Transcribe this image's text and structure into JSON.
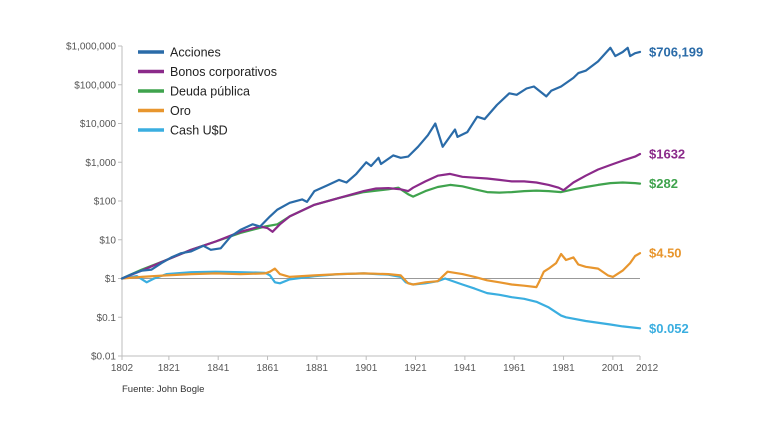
{
  "chart_data": {
    "type": "line",
    "title": "",
    "xlabel": "",
    "ylabel": "",
    "y_scale": "log",
    "ylim": [
      0.01,
      1000000
    ],
    "xlim": [
      1802,
      2012
    ],
    "baseline": 1,
    "grid": false,
    "legend_position": "top-left",
    "y_ticks": [
      {
        "value": 1000000,
        "label": "$1,000,000"
      },
      {
        "value": 100000,
        "label": "$100,000"
      },
      {
        "value": 10000,
        "label": "$10,000"
      },
      {
        "value": 1000,
        "label": "$1,000"
      },
      {
        "value": 100,
        "label": "$100"
      },
      {
        "value": 10,
        "label": "$10"
      },
      {
        "value": 1,
        "label": "$1"
      },
      {
        "value": 0.1,
        "label": "$0.1"
      },
      {
        "value": 0.01,
        "label": "$0.01"
      }
    ],
    "x_ticks": [
      {
        "value": 1802,
        "label": "1802"
      },
      {
        "value": 1821,
        "label": "1821"
      },
      {
        "value": 1841,
        "label": "1841"
      },
      {
        "value": 1861,
        "label": "1861"
      },
      {
        "value": 1881,
        "label": "1881"
      },
      {
        "value": 1901,
        "label": "1901"
      },
      {
        "value": 1921,
        "label": "1921"
      },
      {
        "value": 1941,
        "label": "1941"
      },
      {
        "value": 1961,
        "label": "1961"
      },
      {
        "value": 1981,
        "label": "1981"
      },
      {
        "value": 2001,
        "label": "2001"
      },
      {
        "value": 2012,
        "label": "2012"
      }
    ],
    "series": [
      {
        "name": "Acciones",
        "color": "#2a6ba8",
        "end_label": "$706,199",
        "points": [
          [
            1802,
            1
          ],
          [
            1806,
            1.3
          ],
          [
            1810,
            1.6
          ],
          [
            1814,
            1.7
          ],
          [
            1818,
            2.5
          ],
          [
            1822,
            3.5
          ],
          [
            1826,
            4.5
          ],
          [
            1830,
            5
          ],
          [
            1835,
            7
          ],
          [
            1838,
            5.5
          ],
          [
            1842,
            6
          ],
          [
            1846,
            12
          ],
          [
            1850,
            18
          ],
          [
            1855,
            25
          ],
          [
            1858,
            22
          ],
          [
            1862,
            40
          ],
          [
            1865,
            60
          ],
          [
            1870,
            90
          ],
          [
            1875,
            110
          ],
          [
            1877,
            95
          ],
          [
            1880,
            180
          ],
          [
            1885,
            250
          ],
          [
            1890,
            350
          ],
          [
            1893,
            300
          ],
          [
            1897,
            500
          ],
          [
            1901,
            1000
          ],
          [
            1903,
            800
          ],
          [
            1906,
            1300
          ],
          [
            1907,
            900
          ],
          [
            1912,
            1500
          ],
          [
            1915,
            1300
          ],
          [
            1918,
            1400
          ],
          [
            1922,
            2500
          ],
          [
            1926,
            5000
          ],
          [
            1929,
            10000
          ],
          [
            1932,
            2500
          ],
          [
            1937,
            7000
          ],
          [
            1938,
            4500
          ],
          [
            1942,
            6000
          ],
          [
            1946,
            15000
          ],
          [
            1949,
            13000
          ],
          [
            1954,
            30000
          ],
          [
            1959,
            60000
          ],
          [
            1962,
            55000
          ],
          [
            1966,
            80000
          ],
          [
            1969,
            90000
          ],
          [
            1974,
            50000
          ],
          [
            1976,
            70000
          ],
          [
            1980,
            90000
          ],
          [
            1985,
            150000
          ],
          [
            1987,
            200000
          ],
          [
            1990,
            230000
          ],
          [
            1995,
            400000
          ],
          [
            2000,
            900000
          ],
          [
            2002,
            550000
          ],
          [
            2005,
            700000
          ],
          [
            2007,
            900000
          ],
          [
            2008,
            550000
          ],
          [
            2010,
            650000
          ],
          [
            2012,
            706199
          ]
        ]
      },
      {
        "name": "Bonos corporativos",
        "color": "#8b2a8a",
        "end_label": "$1632",
        "points": [
          [
            1802,
            1
          ],
          [
            1810,
            1.6
          ],
          [
            1820,
            3
          ],
          [
            1830,
            5.5
          ],
          [
            1840,
            9
          ],
          [
            1850,
            16
          ],
          [
            1858,
            22
          ],
          [
            1861,
            20
          ],
          [
            1863,
            16
          ],
          [
            1866,
            25
          ],
          [
            1870,
            40
          ],
          [
            1880,
            80
          ],
          [
            1890,
            120
          ],
          [
            1900,
            180
          ],
          [
            1905,
            210
          ],
          [
            1910,
            215
          ],
          [
            1915,
            200
          ],
          [
            1918,
            180
          ],
          [
            1920,
            220
          ],
          [
            1925,
            320
          ],
          [
            1930,
            450
          ],
          [
            1935,
            500
          ],
          [
            1940,
            420
          ],
          [
            1945,
            400
          ],
          [
            1950,
            380
          ],
          [
            1955,
            350
          ],
          [
            1960,
            320
          ],
          [
            1965,
            320
          ],
          [
            1970,
            300
          ],
          [
            1975,
            260
          ],
          [
            1979,
            220
          ],
          [
            1981,
            190
          ],
          [
            1985,
            300
          ],
          [
            1990,
            450
          ],
          [
            1995,
            650
          ],
          [
            2000,
            850
          ],
          [
            2005,
            1100
          ],
          [
            2010,
            1400
          ],
          [
            2012,
            1632
          ]
        ]
      },
      {
        "name": "Deuda pública",
        "color": "#3fa34d",
        "end_label": "$282",
        "points": [
          [
            1802,
            1
          ],
          [
            1810,
            1.7
          ],
          [
            1820,
            3
          ],
          [
            1830,
            5.5
          ],
          [
            1840,
            9
          ],
          [
            1850,
            15
          ],
          [
            1860,
            22
          ],
          [
            1865,
            25
          ],
          [
            1870,
            40
          ],
          [
            1880,
            80
          ],
          [
            1890,
            120
          ],
          [
            1900,
            170
          ],
          [
            1910,
            200
          ],
          [
            1914,
            220
          ],
          [
            1918,
            150
          ],
          [
            1920,
            130
          ],
          [
            1925,
            180
          ],
          [
            1930,
            230
          ],
          [
            1935,
            260
          ],
          [
            1940,
            240
          ],
          [
            1945,
            200
          ],
          [
            1950,
            170
          ],
          [
            1955,
            165
          ],
          [
            1960,
            170
          ],
          [
            1965,
            180
          ],
          [
            1970,
            185
          ],
          [
            1975,
            180
          ],
          [
            1980,
            170
          ],
          [
            1985,
            200
          ],
          [
            1990,
            230
          ],
          [
            1995,
            260
          ],
          [
            2000,
            290
          ],
          [
            2005,
            300
          ],
          [
            2010,
            290
          ],
          [
            2012,
            282
          ]
        ]
      },
      {
        "name": "Oro",
        "color": "#e8962e",
        "end_label": "$4.50",
        "points": [
          [
            1802,
            1
          ],
          [
            1810,
            1.1
          ],
          [
            1820,
            1.2
          ],
          [
            1830,
            1.3
          ],
          [
            1840,
            1.35
          ],
          [
            1850,
            1.3
          ],
          [
            1860,
            1.35
          ],
          [
            1862,
            1.5
          ],
          [
            1864,
            1.8
          ],
          [
            1866,
            1.3
          ],
          [
            1870,
            1.1
          ],
          [
            1880,
            1.2
          ],
          [
            1890,
            1.3
          ],
          [
            1900,
            1.35
          ],
          [
            1910,
            1.3
          ],
          [
            1915,
            1.2
          ],
          [
            1918,
            0.75
          ],
          [
            1920,
            0.7
          ],
          [
            1925,
            0.8
          ],
          [
            1930,
            0.85
          ],
          [
            1934,
            1.5
          ],
          [
            1940,
            1.3
          ],
          [
            1945,
            1.1
          ],
          [
            1950,
            0.9
          ],
          [
            1955,
            0.8
          ],
          [
            1960,
            0.7
          ],
          [
            1965,
            0.65
          ],
          [
            1970,
            0.6
          ],
          [
            1971,
            0.8
          ],
          [
            1973,
            1.5
          ],
          [
            1975,
            1.8
          ],
          [
            1978,
            2.5
          ],
          [
            1980,
            4.3
          ],
          [
            1982,
            3
          ],
          [
            1985,
            3.5
          ],
          [
            1987,
            2.3
          ],
          [
            1990,
            2
          ],
          [
            1995,
            1.8
          ],
          [
            1999,
            1.2
          ],
          [
            2001,
            1.1
          ],
          [
            2005,
            1.6
          ],
          [
            2008,
            2.5
          ],
          [
            2010,
            3.8
          ],
          [
            2012,
            4.5
          ]
        ]
      },
      {
        "name": "Cash U$D",
        "color": "#3aaee0",
        "end_label": "$0.052",
        "points": [
          [
            1802,
            1
          ],
          [
            1808,
            1.15
          ],
          [
            1812,
            0.8
          ],
          [
            1815,
            1
          ],
          [
            1820,
            1.3
          ],
          [
            1830,
            1.45
          ],
          [
            1840,
            1.5
          ],
          [
            1850,
            1.45
          ],
          [
            1860,
            1.4
          ],
          [
            1862,
            1.2
          ],
          [
            1864,
            0.8
          ],
          [
            1866,
            0.75
          ],
          [
            1870,
            0.95
          ],
          [
            1880,
            1.15
          ],
          [
            1890,
            1.3
          ],
          [
            1900,
            1.35
          ],
          [
            1910,
            1.25
          ],
          [
            1915,
            1.1
          ],
          [
            1917,
            0.8
          ],
          [
            1920,
            0.7
          ],
          [
            1925,
            0.75
          ],
          [
            1930,
            0.85
          ],
          [
            1933,
            1.0
          ],
          [
            1940,
            0.7
          ],
          [
            1945,
            0.55
          ],
          [
            1950,
            0.42
          ],
          [
            1955,
            0.38
          ],
          [
            1960,
            0.33
          ],
          [
            1965,
            0.3
          ],
          [
            1970,
            0.25
          ],
          [
            1975,
            0.18
          ],
          [
            1980,
            0.11
          ],
          [
            1982,
            0.1
          ],
          [
            1990,
            0.08
          ],
          [
            2000,
            0.065
          ],
          [
            2005,
            0.058
          ],
          [
            2012,
            0.052
          ]
        ]
      }
    ],
    "source": "Fuente: John Bogle"
  }
}
